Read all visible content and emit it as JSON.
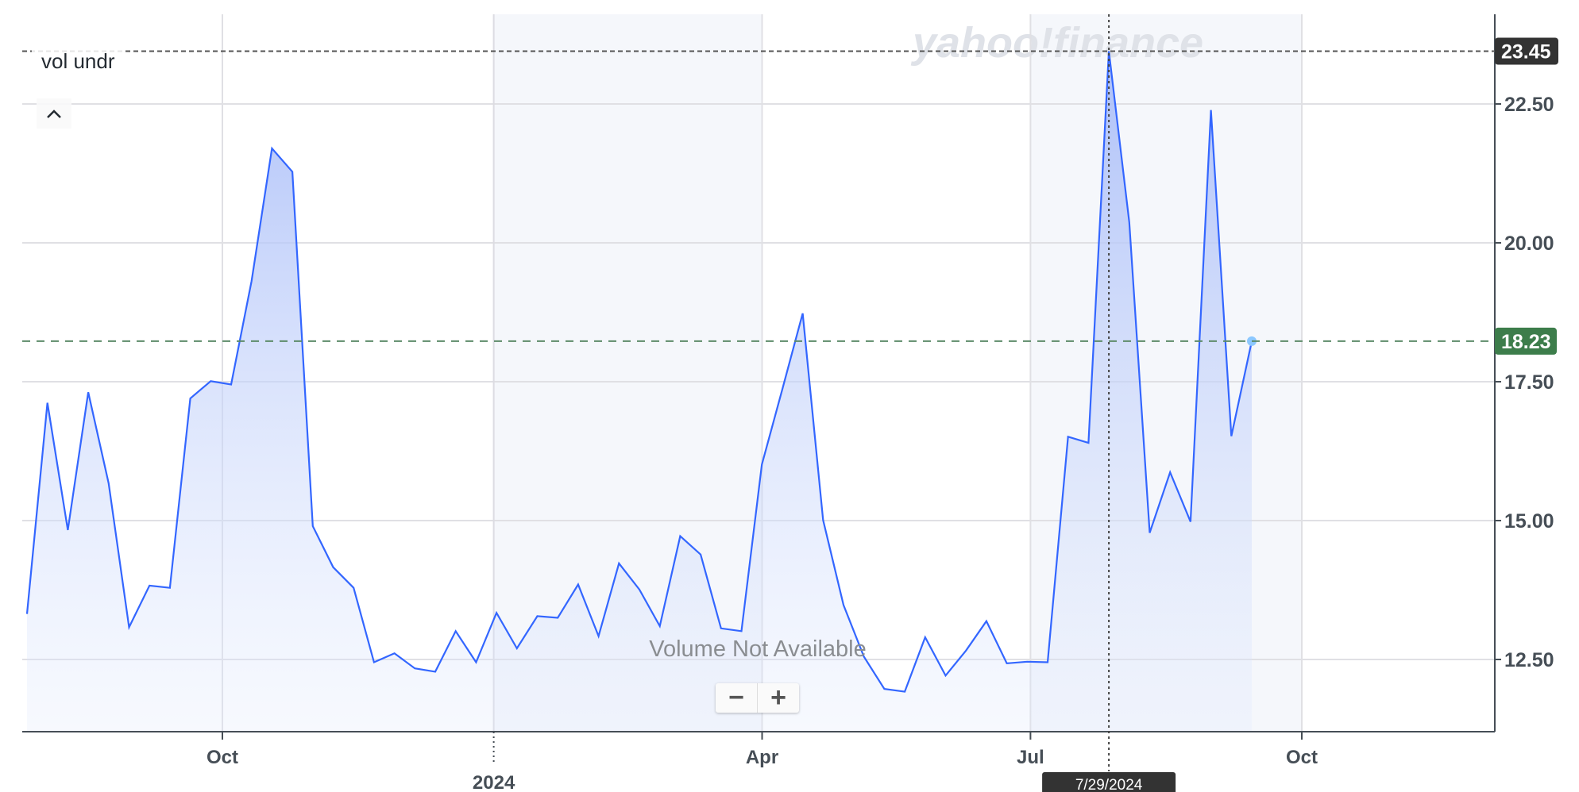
{
  "legend": {
    "label": "vol undr",
    "collapse_icon": "chevron-up-icon"
  },
  "watermark": "yahoo!finance",
  "no_volume_text": "Volume Not Available",
  "zoom": {
    "out_label": "−",
    "in_label": "+"
  },
  "colors": {
    "line": "#3366ff",
    "fill_top": "#a9bdf8",
    "current_badge": "#3d7d4b",
    "crosshair_badge": "#333333",
    "last_point": "#8cc8ff",
    "band": "#f5f7fb"
  },
  "chart_data": {
    "type": "area",
    "title": "",
    "xlabel": "",
    "ylabel": "",
    "ylim": [
      11.4,
      24.3
    ],
    "grid": true,
    "y_ticks": [
      "12.50",
      "15.00",
      "17.50",
      "20.00",
      "22.50"
    ],
    "y_tick_values": [
      12.5,
      15,
      17.5,
      20,
      22.5
    ],
    "x_ticks": [
      {
        "label": "Oct",
        "date": "2023-10-01"
      },
      {
        "label": "2024",
        "date": "2024-01-01",
        "major": true
      },
      {
        "label": "Apr",
        "date": "2024-04-01"
      },
      {
        "label": "Jul",
        "date": "2024-07-01"
      },
      {
        "label": "Oct",
        "date": "2024-10-01"
      }
    ],
    "x_range": [
      "2023-07-19",
      "2024-12-28"
    ],
    "frequency": "weekly",
    "values": [
      13.32,
      17.12,
      14.83,
      17.31,
      15.67,
      13.08,
      13.83,
      13.79,
      17.2,
      17.51,
      17.45,
      19.31,
      21.7,
      21.28,
      14.9,
      14.16,
      13.79,
      12.45,
      12.61,
      12.34,
      12.28,
      13.01,
      12.45,
      13.34,
      12.7,
      13.28,
      13.25,
      13.85,
      12.92,
      14.23,
      13.76,
      13.1,
      14.72,
      14.39,
      13.06,
      13.01,
      16.01,
      17.36,
      18.73,
      15.01,
      13.48,
      12.55,
      11.97,
      11.92,
      12.9,
      12.21,
      12.66,
      13.19,
      12.43,
      12.46,
      12.45,
      16.51,
      16.4,
      23.45,
      20.37,
      14.78,
      15.87,
      14.98,
      22.39,
      16.52,
      18.23
    ],
    "current_value": "18.23",
    "crosshair": {
      "index": 53,
      "date_label": "7/29/2024",
      "value_label": "23.45"
    }
  }
}
